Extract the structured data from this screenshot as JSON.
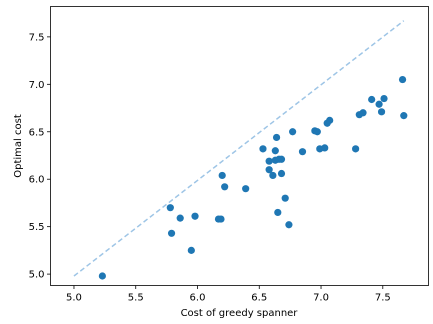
{
  "chart_data": {
    "type": "scatter",
    "title": "",
    "xlabel": "Cost of greedy spanner",
    "ylabel": "Optimal cost",
    "xlim": [
      4.81,
      7.87
    ],
    "ylim": [
      4.88,
      7.82
    ],
    "xticks": [
      "5.0",
      "5.5",
      "6.0",
      "6.5",
      "7.0",
      "7.5"
    ],
    "yticks": [
      "5.0",
      "5.5",
      "6.0",
      "6.5",
      "7.0",
      "7.5"
    ],
    "grid": false,
    "reference_line": {
      "style": "dashed",
      "from": [
        5.0,
        4.98
      ],
      "to": [
        7.67,
        7.67
      ]
    },
    "colors": {
      "points": "#1f77b4",
      "reference_line": "#9ec5e6"
    },
    "series": [
      {
        "x": [
          5.23,
          5.78,
          5.79,
          5.86,
          5.95,
          5.98,
          6.17,
          6.19,
          6.2,
          6.22,
          6.39,
          6.53,
          6.58,
          6.58,
          6.61,
          6.63,
          6.63,
          6.64,
          6.65,
          6.66,
          6.68,
          6.68,
          6.71,
          6.74,
          6.77,
          6.85,
          6.95,
          6.97,
          6.99,
          7.03,
          7.05,
          7.07,
          7.28,
          7.31,
          7.34,
          7.41,
          7.47,
          7.49,
          7.51,
          7.66,
          7.67
        ],
        "y": [
          4.98,
          5.7,
          5.43,
          5.59,
          5.25,
          5.61,
          5.58,
          5.58,
          6.04,
          5.92,
          5.9,
          6.32,
          6.1,
          6.19,
          6.04,
          6.2,
          6.3,
          6.44,
          5.65,
          6.21,
          6.06,
          6.21,
          5.8,
          5.52,
          6.5,
          6.29,
          6.51,
          6.5,
          6.32,
          6.33,
          6.59,
          6.62,
          6.32,
          6.68,
          6.7,
          6.84,
          6.79,
          6.71,
          6.85,
          7.05,
          6.67
        ]
      }
    ]
  }
}
